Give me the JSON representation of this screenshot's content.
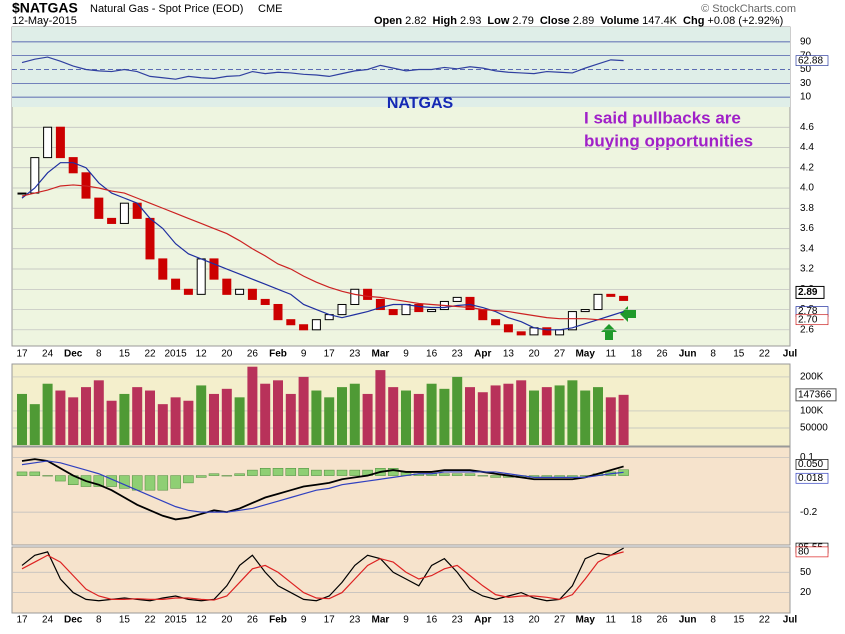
{
  "header": {
    "symbol": "$NATGAS",
    "name": "Natural Gas - Spot Price (EOD)",
    "exchange": "CME",
    "date": "12-May-2015",
    "stats": [
      {
        "label": "Open",
        "value": "2.82"
      },
      {
        "label": "High",
        "value": "2.93"
      },
      {
        "label": "Low",
        "value": "2.79"
      },
      {
        "label": "Close",
        "value": "2.89"
      },
      {
        "label": "Volume",
        "value": "147.4K"
      },
      {
        "label": "Chg",
        "value": "+0.08 (+2.92%)"
      }
    ],
    "credit": "© StockCharts.com"
  },
  "x_ticks": [
    "17",
    "24",
    "Dec",
    "8",
    "15",
    "22",
    "2015",
    "12",
    "20",
    "26",
    "Feb",
    "9",
    "17",
    "23",
    "Mar",
    "9",
    "16",
    "23",
    "Apr",
    "13",
    "20",
    "27",
    "May",
    "11",
    "18",
    "26",
    "Jun",
    "8",
    "15",
    "22",
    "Jul"
  ],
  "chart_data": [
    {
      "type": "candlestick",
      "title": "NATGAS",
      "annotation": [
        "I said pullbacks are",
        "buying opportunities"
      ],
      "color_up": "#000000",
      "color_down": "#cc0000",
      "values": [
        3.95,
        4.3,
        4.6,
        4.3,
        4.15,
        3.9,
        3.7,
        3.65,
        3.85,
        3.7,
        3.3,
        3.1,
        3.0,
        2.95,
        3.3,
        3.1,
        2.95,
        3.0,
        2.9,
        2.85,
        2.7,
        2.65,
        2.6,
        2.7,
        2.75,
        2.85,
        3.0,
        2.9,
        2.8,
        2.75,
        2.85,
        2.78,
        2.8,
        2.88,
        2.92,
        2.8,
        2.7,
        2.65,
        2.58,
        2.55,
        2.62,
        2.55,
        2.6,
        2.78,
        2.8,
        2.95,
        2.93,
        2.89
      ],
      "series": [
        {
          "color": "#1f2fa0",
          "values": [
            3.9,
            4.0,
            4.15,
            4.25,
            4.25,
            4.2,
            4.05,
            3.95,
            3.9,
            3.85,
            3.7,
            3.6,
            3.45,
            3.35,
            3.3,
            3.25,
            3.2,
            3.15,
            3.1,
            3.05,
            3.0,
            2.95,
            2.85,
            2.8,
            2.75,
            2.72,
            2.75,
            2.78,
            2.82,
            2.85,
            2.85,
            2.83,
            2.82,
            2.82,
            2.84,
            2.85,
            2.82,
            2.78,
            2.72,
            2.68,
            2.62,
            2.6,
            2.6,
            2.62,
            2.66,
            2.7,
            2.74,
            2.78
          ]
        },
        {
          "color": "#cc2222",
          "values": [
            3.92,
            3.95,
            3.98,
            4.02,
            4.03,
            4.02,
            4.0,
            3.97,
            3.95,
            3.9,
            3.85,
            3.8,
            3.75,
            3.7,
            3.65,
            3.6,
            3.55,
            3.48,
            3.4,
            3.33,
            3.25,
            3.2,
            3.13,
            3.07,
            3.02,
            2.98,
            2.95,
            2.93,
            2.92,
            2.9,
            2.88,
            2.86,
            2.85,
            2.84,
            2.83,
            2.82,
            2.8,
            2.79,
            2.78,
            2.76,
            2.74,
            2.72,
            2.71,
            2.71,
            2.71,
            2.7,
            2.7,
            2.7
          ],
          "value_labels": [
            null,
            null,
            null,
            null,
            null,
            null,
            null,
            null,
            null,
            null,
            null,
            null,
            null,
            null,
            null,
            null,
            null,
            null,
            null,
            null,
            null,
            null,
            null,
            null,
            null,
            null,
            null,
            null,
            null,
            null,
            null,
            null,
            null,
            null,
            null,
            null,
            null,
            null,
            null,
            null,
            null,
            null,
            null,
            null,
            null,
            null,
            null,
            "2.70"
          ]
        }
      ],
      "ylim": [
        2.45,
        4.77
      ],
      "yticks": [
        2.6,
        2.8,
        {
          "value": 3,
          "label": "3.0"
        },
        3.2,
        3.4,
        3.6,
        3.8,
        {
          "value": 4,
          "label": "4.0"
        },
        4.2,
        4.4,
        4.6
      ]
    },
    {
      "type": "line",
      "series": [
        {
          "color": "#3040a0",
          "values": [
            60,
            65,
            68,
            62,
            55,
            50,
            48,
            47,
            50,
            47,
            40,
            38,
            36,
            40,
            38,
            37,
            40,
            41,
            47,
            44,
            46,
            45,
            43,
            42,
            40,
            44,
            48,
            50,
            56,
            52,
            48,
            50,
            50,
            53,
            51,
            54,
            52,
            48,
            46,
            45,
            44,
            47,
            46,
            45,
            52,
            58,
            64,
            62.88
          ]
        }
      ],
      "ylim": [
        0,
        100
      ],
      "yticks": [
        90,
        70,
        50,
        30,
        10
      ]
    },
    {
      "type": "bar",
      "color_up": "#4f9a35",
      "color_down": "#b8325a",
      "values": [
        150000,
        120000,
        180000,
        160000,
        140000,
        170000,
        190000,
        130000,
        150000,
        170000,
        160000,
        120000,
        140000,
        130000,
        175000,
        150000,
        165000,
        140000,
        230000,
        180000,
        190000,
        150000,
        200000,
        160000,
        140000,
        170000,
        180000,
        150000,
        220000,
        170000,
        160000,
        150000,
        180000,
        165000,
        200000,
        170000,
        155000,
        175000,
        180000,
        190000,
        160000,
        170000,
        175000,
        190000,
        160000,
        170000,
        140000,
        147366
      ],
      "ylim": [
        0,
        235000
      ],
      "yticks": [
        {
          "value": 200000,
          "label": "200K"
        },
        {
          "value": 100000,
          "label": "100K"
        },
        50000
      ]
    },
    {
      "type": "macd",
      "histogram": {
        "color": "#8fcf74",
        "values": [
          0.02,
          0.02,
          0.0,
          -0.03,
          -0.05,
          -0.06,
          -0.06,
          -0.06,
          -0.07,
          -0.08,
          -0.08,
          -0.08,
          -0.07,
          -0.04,
          -0.01,
          0.01,
          0.0,
          0.01,
          0.03,
          0.04,
          0.04,
          0.04,
          0.04,
          0.03,
          0.03,
          0.03,
          0.03,
          0.03,
          0.04,
          0.04,
          0.02,
          0.01,
          0.01,
          0.01,
          0.01,
          0.01,
          0.0,
          -0.01,
          -0.01,
          -0.01,
          -0.01,
          -0.01,
          -0.01,
          -0.01,
          0.0,
          0.01,
          0.02,
          0.032
        ]
      },
      "series": [
        {
          "color": "#000000",
          "values": [
            0.08,
            0.09,
            0.08,
            0.04,
            0.0,
            -0.03,
            -0.05,
            -0.08,
            -0.12,
            -0.16,
            -0.19,
            -0.22,
            -0.24,
            -0.23,
            -0.21,
            -0.19,
            -0.2,
            -0.18,
            -0.15,
            -0.12,
            -0.1,
            -0.08,
            -0.06,
            -0.05,
            -0.04,
            -0.02,
            -0.01,
            0.0,
            0.02,
            0.03,
            0.02,
            0.02,
            0.02,
            0.03,
            0.03,
            0.03,
            0.02,
            0.01,
            0.0,
            -0.01,
            -0.02,
            -0.02,
            -0.02,
            -0.02,
            -0.01,
            0.01,
            0.03,
            0.05
          ],
          "value_labels": [
            null,
            null,
            null,
            null,
            null,
            null,
            null,
            null,
            null,
            null,
            null,
            null,
            null,
            null,
            null,
            null,
            null,
            null,
            null,
            null,
            null,
            null,
            null,
            null,
            null,
            null,
            null,
            null,
            null,
            null,
            null,
            null,
            null,
            null,
            null,
            null,
            null,
            null,
            null,
            null,
            null,
            null,
            null,
            null,
            null,
            null,
            null,
            "0.050"
          ]
        },
        {
          "color": "#3040c0",
          "values": [
            0.06,
            0.07,
            0.08,
            0.07,
            0.05,
            0.03,
            0.01,
            -0.02,
            -0.05,
            -0.08,
            -0.11,
            -0.14,
            -0.17,
            -0.19,
            -0.2,
            -0.2,
            -0.2,
            -0.19,
            -0.18,
            -0.16,
            -0.14,
            -0.12,
            -0.1,
            -0.08,
            -0.07,
            -0.05,
            -0.04,
            -0.03,
            -0.02,
            -0.01,
            0.0,
            0.01,
            0.01,
            0.02,
            0.02,
            0.02,
            0.02,
            0.02,
            0.01,
            0.0,
            -0.01,
            -0.01,
            -0.01,
            -0.01,
            -0.01,
            0.0,
            0.01,
            0.018
          ],
          "value_labels": [
            null,
            null,
            null,
            null,
            null,
            null,
            null,
            null,
            null,
            null,
            null,
            null,
            null,
            null,
            null,
            null,
            null,
            null,
            null,
            null,
            null,
            null,
            null,
            null,
            null,
            null,
            null,
            null,
            null,
            null,
            null,
            null,
            null,
            null,
            null,
            null,
            null,
            null,
            null,
            null,
            null,
            null,
            null,
            null,
            null,
            null,
            null,
            "0.018"
          ]
        }
      ],
      "ylim": [
        -0.38,
        0.14
      ],
      "yticks": [
        0.1,
        -0.2
      ]
    },
    {
      "type": "line",
      "series": [
        {
          "color": "#000000",
          "values": [
            60,
            75,
            80,
            40,
            20,
            10,
            8,
            10,
            12,
            10,
            8,
            12,
            15,
            10,
            8,
            10,
            30,
            60,
            75,
            50,
            30,
            20,
            10,
            8,
            15,
            35,
            60,
            75,
            70,
            50,
            40,
            30,
            60,
            70,
            50,
            25,
            15,
            10,
            15,
            20,
            12,
            8,
            10,
            30,
            70,
            78,
            75,
            85.55
          ]
        },
        {
          "color": "#dd2222",
          "values": [
            55,
            65,
            75,
            65,
            45,
            25,
            15,
            10,
            10,
            11,
            10,
            10,
            12,
            12,
            10,
            9,
            15,
            35,
            55,
            60,
            50,
            35,
            20,
            12,
            11,
            20,
            40,
            60,
            70,
            65,
            50,
            40,
            45,
            55,
            60,
            45,
            30,
            17,
            13,
            15,
            15,
            13,
            10,
            17,
            40,
            65,
            75,
            80
          ]
        }
      ],
      "ylim": [
        -8.6,
        85.7
      ],
      "yticks": [
        50,
        20
      ]
    }
  ]
}
